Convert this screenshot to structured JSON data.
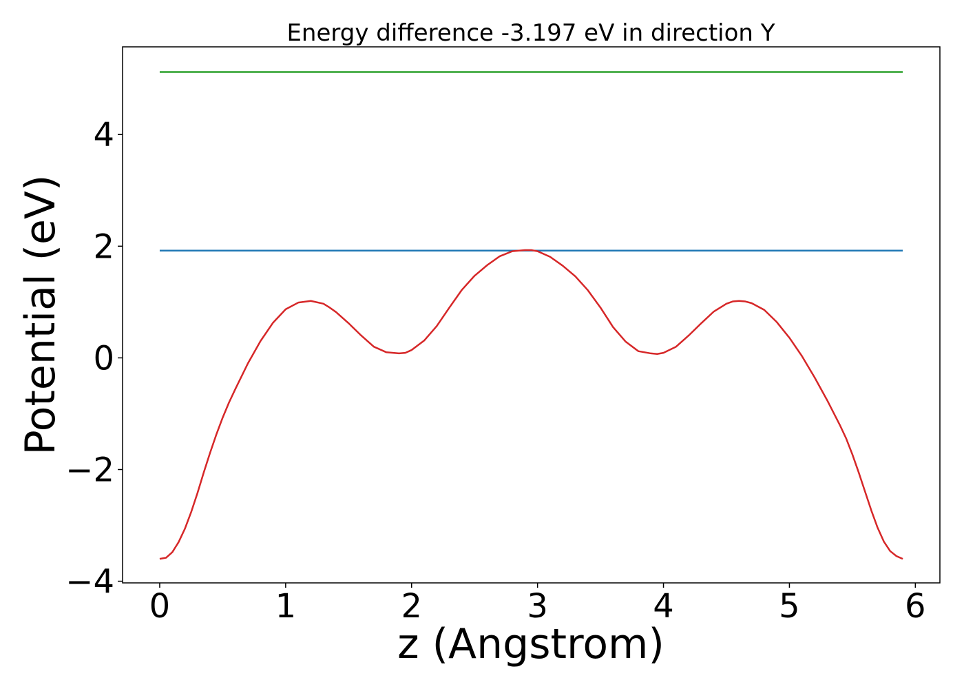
{
  "chart_data": {
    "type": "line",
    "title": "Energy difference -3.197 eV in direction Y",
    "xlabel": "z (Angstrom)",
    "ylabel": "Potential (eV)",
    "xlim": [
      -0.295,
      6.195
    ],
    "ylim": [
      -4.03,
      5.57
    ],
    "xticks": [
      0,
      1,
      2,
      3,
      4,
      5,
      6
    ],
    "xtick_labels": [
      "0",
      "1",
      "2",
      "3",
      "4",
      "5",
      "6"
    ],
    "yticks": [
      -4,
      -2,
      0,
      2,
      4
    ],
    "ytick_labels": [
      "−4",
      "−2",
      "0",
      "2",
      "4"
    ],
    "grid": false,
    "series": [
      {
        "color": "#2ca02c",
        "x": [
          0,
          5.9
        ],
        "y": [
          5.12,
          5.12
        ]
      },
      {
        "color": "#1f77b4",
        "x": [
          0,
          5.9
        ],
        "y": [
          1.92,
          1.92
        ]
      },
      {
        "color": "#d62728",
        "x": [
          0,
          0.05,
          0.1,
          0.15,
          0.2,
          0.25,
          0.3,
          0.35,
          0.4,
          0.45,
          0.5,
          0.55,
          0.6,
          0.7,
          0.8,
          0.9,
          1.0,
          1.1,
          1.2,
          1.3,
          1.35,
          1.4,
          1.5,
          1.6,
          1.7,
          1.8,
          1.9,
          1.95,
          2.0,
          2.1,
          2.2,
          2.3,
          2.4,
          2.5,
          2.6,
          2.7,
          2.8,
          2.9,
          2.95,
          3.0,
          3.1,
          3.2,
          3.3,
          3.4,
          3.5,
          3.6,
          3.7,
          3.8,
          3.9,
          3.95,
          4.0,
          4.1,
          4.2,
          4.3,
          4.4,
          4.5,
          4.55,
          4.6,
          4.65,
          4.7,
          4.8,
          4.9,
          5.0,
          5.1,
          5.2,
          5.3,
          5.4,
          5.45,
          5.5,
          5.55,
          5.6,
          5.65,
          5.7,
          5.75,
          5.8,
          5.85,
          5.9
        ],
        "y": [
          -3.6,
          -3.58,
          -3.48,
          -3.3,
          -3.06,
          -2.76,
          -2.42,
          -2.05,
          -1.7,
          -1.37,
          -1.07,
          -0.8,
          -0.56,
          -0.1,
          0.3,
          0.63,
          0.87,
          0.99,
          1.02,
          0.97,
          0.9,
          0.82,
          0.62,
          0.4,
          0.2,
          0.1,
          0.08,
          0.09,
          0.14,
          0.31,
          0.57,
          0.9,
          1.22,
          1.47,
          1.66,
          1.82,
          1.91,
          1.93,
          1.93,
          1.91,
          1.81,
          1.65,
          1.46,
          1.21,
          0.9,
          0.55,
          0.29,
          0.12,
          0.08,
          0.07,
          0.09,
          0.2,
          0.4,
          0.62,
          0.83,
          0.97,
          1.01,
          1.02,
          1.01,
          0.98,
          0.86,
          0.64,
          0.36,
          0.03,
          -0.35,
          -0.76,
          -1.2,
          -1.44,
          -1.73,
          -2.05,
          -2.39,
          -2.73,
          -3.04,
          -3.29,
          -3.46,
          -3.55,
          -3.6
        ]
      }
    ]
  }
}
